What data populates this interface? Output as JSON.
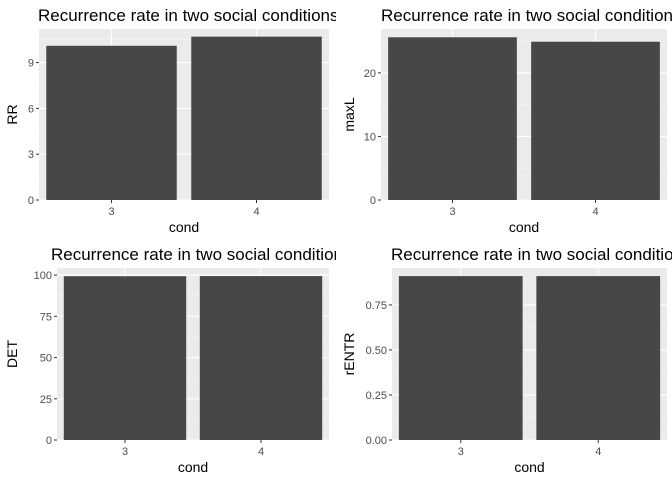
{
  "chart_data": [
    {
      "type": "bar",
      "title": "Recurrence rate in two social conditions",
      "xlabel": "cond",
      "ylabel": "RR",
      "categories": [
        "3",
        "4"
      ],
      "values": [
        10.1,
        10.7
      ],
      "ylim": [
        0,
        11.2
      ],
      "yticks": [
        0,
        3,
        6,
        9
      ],
      "ytick_labels": [
        "0",
        "3",
        "6",
        "9"
      ],
      "grid": true,
      "bar_color": "#474747",
      "panel_bg": "#ebebeb"
    },
    {
      "type": "bar",
      "title": "Recurrence rate in two social conditions",
      "xlabel": "cond",
      "ylabel": "maxL",
      "categories": [
        "3",
        "4"
      ],
      "values": [
        25.6,
        24.9
      ],
      "ylim": [
        0,
        26.9
      ],
      "yticks": [
        0,
        10,
        20
      ],
      "ytick_labels": [
        "0",
        "10",
        "20"
      ],
      "grid": true,
      "bar_color": "#474747",
      "panel_bg": "#ebebeb"
    },
    {
      "type": "bar",
      "title": "Recurrence rate in two social conditions",
      "xlabel": "cond",
      "ylabel": "DET",
      "categories": [
        "3",
        "4"
      ],
      "values": [
        99.3,
        99.4
      ],
      "ylim": [
        0,
        104.3
      ],
      "yticks": [
        0,
        25,
        50,
        75,
        100
      ],
      "ytick_labels": [
        "0",
        "25",
        "50",
        "75",
        "100"
      ],
      "grid": true,
      "bar_color": "#474747",
      "panel_bg": "#ebebeb"
    },
    {
      "type": "bar",
      "title": "Recurrence rate in two social conditions",
      "xlabel": "cond",
      "ylabel": "rENTR",
      "categories": [
        "3",
        "4"
      ],
      "values": [
        0.91,
        0.91
      ],
      "ylim": [
        0,
        0.955
      ],
      "yticks": [
        0,
        0.25,
        0.5,
        0.75
      ],
      "ytick_labels": [
        "0.00",
        "0.25",
        "0.50",
        "0.75"
      ],
      "grid": true,
      "bar_color": "#474747",
      "panel_bg": "#ebebeb"
    }
  ]
}
